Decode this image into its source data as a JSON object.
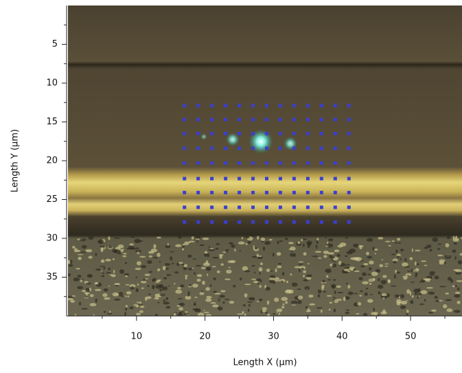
{
  "chart_data": {
    "type": "scatter",
    "x_label": "Length X (μm)",
    "y_label": "Length Y (μm)",
    "xlim": [
      0,
      57.5
    ],
    "ylim": [
      0,
      40
    ],
    "xticks": [
      10,
      20,
      30,
      40,
      50
    ],
    "xminorticks": [
      5,
      15,
      25,
      35,
      45,
      55
    ],
    "yticks": [
      5,
      10,
      15,
      20,
      25,
      30,
      35
    ],
    "yminorticks": [
      2.5,
      7.5,
      12.5,
      17.5,
      22.5,
      27.5,
      32.5,
      37.5
    ],
    "y_inverted": true,
    "color": "#3a3fd0",
    "grid_x": [
      17,
      19,
      21,
      23,
      25,
      27,
      29,
      31,
      33,
      35,
      37,
      39,
      41
    ],
    "grid_y": [
      12.9,
      14.7,
      16.5,
      18.4,
      20.3,
      22.3,
      24.1,
      26.0,
      27.9
    ]
  }
}
